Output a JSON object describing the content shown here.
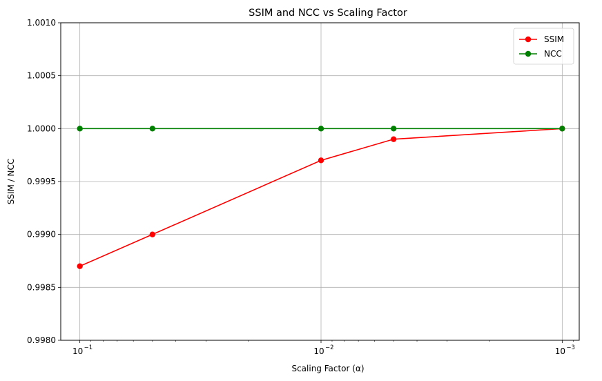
{
  "chart_data": {
    "type": "line",
    "title": "SSIM and NCC vs Scaling Factor",
    "xlabel": "Scaling Factor (α)",
    "ylabel": "SSIM / NCC",
    "x_scale": "log",
    "x_reversed": true,
    "x": [
      0.1,
      0.05,
      0.01,
      0.005,
      0.001
    ],
    "xlim": [
      0.12,
      0.00085
    ],
    "ylim": [
      0.998,
      1.001
    ],
    "x_ticks": [
      0.1,
      0.01,
      0.001
    ],
    "x_tick_labels": [
      "10",
      "10",
      "10"
    ],
    "x_tick_exponents": [
      "−1",
      "−2",
      "−3"
    ],
    "y_ticks": [
      0.998,
      0.9985,
      0.999,
      0.9995,
      1.0,
      1.0005,
      1.001
    ],
    "y_tick_labels": [
      "0.9980",
      "0.9985",
      "0.9990",
      "0.9995",
      "1.0000",
      "1.0005",
      "1.0010"
    ],
    "grid": true,
    "legend_position": "top-right",
    "series": [
      {
        "name": "SSIM",
        "color": "#ff0000",
        "values": [
          0.9987,
          0.999,
          0.9997,
          0.9999,
          1.0
        ]
      },
      {
        "name": "NCC",
        "color": "#008000",
        "values": [
          1.0,
          1.0,
          1.0,
          1.0,
          1.0
        ]
      }
    ]
  }
}
